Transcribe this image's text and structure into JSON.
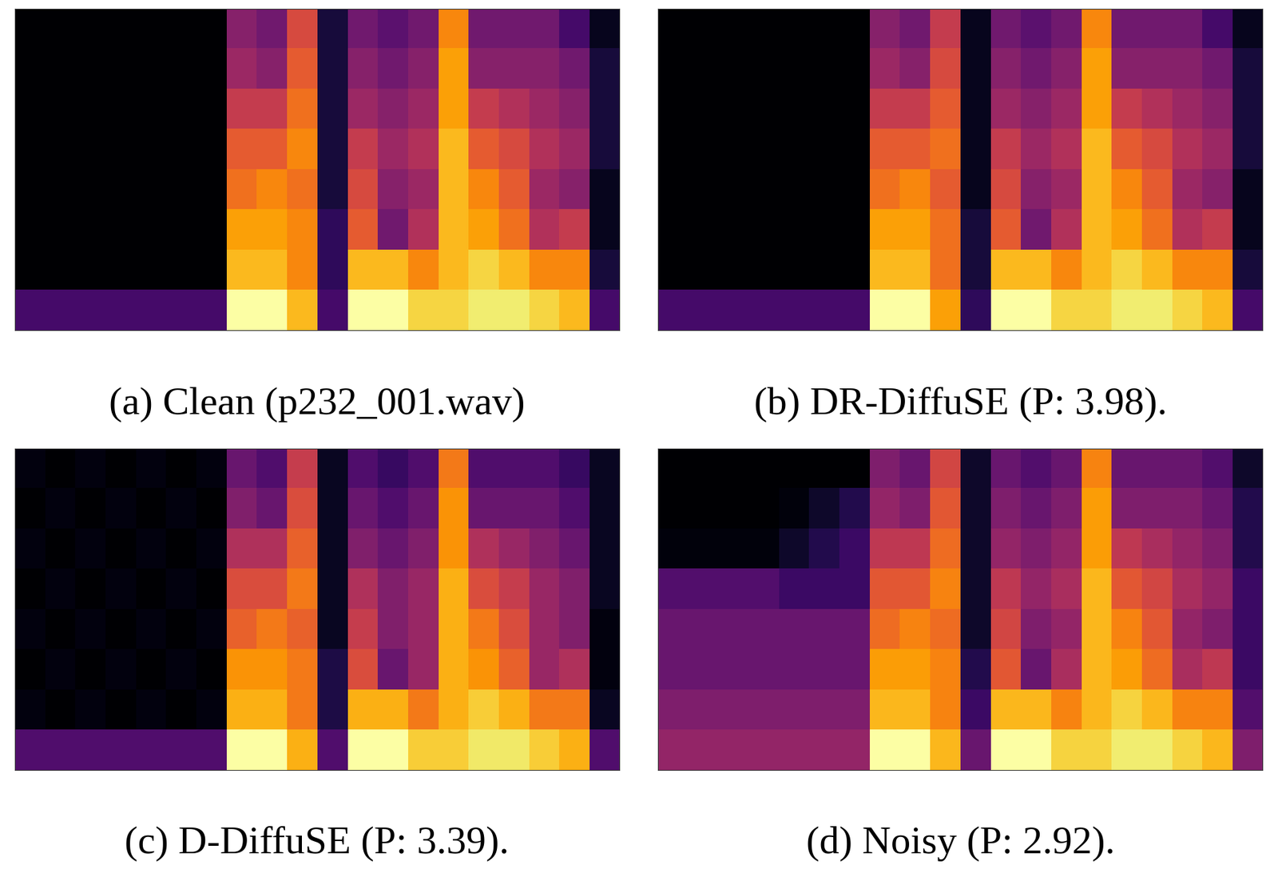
{
  "chart_data": [
    {
      "type": "heatmap",
      "title": "(a) Clean (p232_001.wav)",
      "color": "inferno",
      "tick_labels": false,
      "cells": [
        [
          0,
          0,
          0,
          0,
          0,
          0,
          0,
          0.35,
          0.3,
          0.55,
          0.1,
          0.3,
          0.25,
          0.3,
          0.7,
          0.3,
          0.3,
          0.3,
          0.2,
          0.05
        ],
        [
          0,
          0,
          0,
          0,
          0,
          0,
          0,
          0.4,
          0.35,
          0.6,
          0.1,
          0.35,
          0.3,
          0.35,
          0.75,
          0.35,
          0.35,
          0.35,
          0.3,
          0.1
        ],
        [
          0,
          0,
          0,
          0,
          0,
          0,
          0,
          0.5,
          0.5,
          0.65,
          0.1,
          0.4,
          0.35,
          0.4,
          0.75,
          0.5,
          0.45,
          0.4,
          0.35,
          0.1
        ],
        [
          0,
          0,
          0,
          0,
          0,
          0,
          0,
          0.6,
          0.6,
          0.7,
          0.1,
          0.5,
          0.4,
          0.45,
          0.8,
          0.6,
          0.55,
          0.45,
          0.4,
          0.1
        ],
        [
          0,
          0,
          0,
          0,
          0,
          0,
          0,
          0.65,
          0.7,
          0.65,
          0.1,
          0.55,
          0.35,
          0.4,
          0.8,
          0.7,
          0.6,
          0.4,
          0.35,
          0.05
        ],
        [
          0,
          0,
          0,
          0,
          0,
          0,
          0,
          0.75,
          0.75,
          0.7,
          0.15,
          0.6,
          0.3,
          0.45,
          0.8,
          0.75,
          0.65,
          0.45,
          0.5,
          0.05
        ],
        [
          0,
          0,
          0,
          0,
          0,
          0,
          0,
          0.8,
          0.8,
          0.7,
          0.15,
          0.8,
          0.8,
          0.7,
          0.8,
          0.85,
          0.8,
          0.7,
          0.7,
          0.1
        ],
        [
          0.2,
          0.2,
          0.2,
          0.2,
          0.2,
          0.2,
          0.2,
          0.95,
          0.95,
          0.8,
          0.2,
          0.95,
          0.95,
          0.85,
          0.85,
          0.9,
          0.9,
          0.85,
          0.8,
          0.2
        ]
      ]
    },
    {
      "type": "heatmap",
      "title": "(b) DR-DiffuSE (P: 3.98).",
      "color": "inferno",
      "tick_labels": false,
      "cells": [
        [
          0,
          0,
          0,
          0,
          0,
          0,
          0,
          0.35,
          0.3,
          0.5,
          0.05,
          0.3,
          0.25,
          0.3,
          0.7,
          0.3,
          0.3,
          0.3,
          0.2,
          0.05
        ],
        [
          0,
          0,
          0,
          0,
          0,
          0,
          0,
          0.4,
          0.35,
          0.55,
          0.05,
          0.35,
          0.3,
          0.35,
          0.75,
          0.35,
          0.35,
          0.35,
          0.3,
          0.1
        ],
        [
          0,
          0,
          0,
          0,
          0,
          0,
          0,
          0.5,
          0.5,
          0.6,
          0.05,
          0.4,
          0.35,
          0.4,
          0.75,
          0.5,
          0.45,
          0.4,
          0.35,
          0.1
        ],
        [
          0,
          0,
          0,
          0,
          0,
          0,
          0,
          0.6,
          0.6,
          0.65,
          0.05,
          0.5,
          0.4,
          0.45,
          0.8,
          0.6,
          0.55,
          0.45,
          0.4,
          0.1
        ],
        [
          0,
          0,
          0,
          0,
          0,
          0,
          0,
          0.65,
          0.7,
          0.6,
          0.05,
          0.55,
          0.35,
          0.4,
          0.8,
          0.7,
          0.6,
          0.4,
          0.35,
          0.05
        ],
        [
          0,
          0,
          0,
          0,
          0,
          0,
          0,
          0.75,
          0.75,
          0.65,
          0.1,
          0.6,
          0.3,
          0.45,
          0.8,
          0.75,
          0.65,
          0.45,
          0.5,
          0.05
        ],
        [
          0,
          0,
          0,
          0,
          0,
          0,
          0,
          0.8,
          0.8,
          0.65,
          0.1,
          0.8,
          0.8,
          0.7,
          0.8,
          0.85,
          0.8,
          0.7,
          0.7,
          0.1
        ],
        [
          0.2,
          0.2,
          0.2,
          0.2,
          0.2,
          0.2,
          0.2,
          0.95,
          0.95,
          0.75,
          0.15,
          0.95,
          0.95,
          0.85,
          0.85,
          0.9,
          0.9,
          0.85,
          0.8,
          0.2
        ]
      ]
    },
    {
      "type": "heatmap",
      "title": "(c) D-DiffuSE (P: 3.39).",
      "color": "inferno",
      "tick_labels": false,
      "cells": [
        [
          0.12,
          0.1,
          0.12,
          0.1,
          0.12,
          0.1,
          0.12,
          0.35,
          0.3,
          0.55,
          0.15,
          0.3,
          0.25,
          0.3,
          0.7,
          0.3,
          0.3,
          0.3,
          0.25,
          0.15
        ],
        [
          0.1,
          0.12,
          0.1,
          0.12,
          0.1,
          0.12,
          0.1,
          0.4,
          0.35,
          0.6,
          0.15,
          0.35,
          0.3,
          0.35,
          0.75,
          0.35,
          0.35,
          0.35,
          0.3,
          0.15
        ],
        [
          0.12,
          0.1,
          0.12,
          0.1,
          0.12,
          0.1,
          0.12,
          0.5,
          0.5,
          0.65,
          0.15,
          0.4,
          0.35,
          0.4,
          0.75,
          0.5,
          0.45,
          0.4,
          0.35,
          0.15
        ],
        [
          0.1,
          0.12,
          0.1,
          0.12,
          0.1,
          0.12,
          0.1,
          0.6,
          0.6,
          0.7,
          0.15,
          0.5,
          0.4,
          0.45,
          0.8,
          0.6,
          0.55,
          0.45,
          0.4,
          0.15
        ],
        [
          0.12,
          0.1,
          0.12,
          0.1,
          0.12,
          0.1,
          0.12,
          0.65,
          0.7,
          0.65,
          0.15,
          0.55,
          0.4,
          0.45,
          0.8,
          0.7,
          0.6,
          0.45,
          0.4,
          0.12
        ],
        [
          0.1,
          0.12,
          0.1,
          0.12,
          0.1,
          0.12,
          0.1,
          0.75,
          0.75,
          0.7,
          0.2,
          0.6,
          0.35,
          0.45,
          0.8,
          0.75,
          0.65,
          0.45,
          0.5,
          0.12
        ],
        [
          0.12,
          0.1,
          0.12,
          0.1,
          0.12,
          0.1,
          0.12,
          0.8,
          0.8,
          0.7,
          0.2,
          0.8,
          0.8,
          0.7,
          0.8,
          0.85,
          0.8,
          0.7,
          0.7,
          0.15
        ],
        [
          0.3,
          0.3,
          0.3,
          0.3,
          0.3,
          0.3,
          0.3,
          0.95,
          0.95,
          0.8,
          0.3,
          0.95,
          0.95,
          0.85,
          0.85,
          0.9,
          0.9,
          0.85,
          0.8,
          0.3
        ]
      ]
    },
    {
      "type": "heatmap",
      "title": "(d) Noisy (P: 2.92).",
      "color": "inferno",
      "tick_labels": false,
      "cells": [
        [
          0.03,
          0.03,
          0.03,
          0.03,
          0.03,
          0.03,
          0.03,
          0.35,
          0.3,
          0.55,
          0.1,
          0.3,
          0.25,
          0.3,
          0.7,
          0.3,
          0.3,
          0.3,
          0.25,
          0.1
        ],
        [
          0.03,
          0.03,
          0.03,
          0.03,
          0.05,
          0.1,
          0.15,
          0.4,
          0.35,
          0.6,
          0.1,
          0.35,
          0.3,
          0.35,
          0.75,
          0.35,
          0.35,
          0.35,
          0.3,
          0.15
        ],
        [
          0.05,
          0.05,
          0.05,
          0.05,
          0.1,
          0.15,
          0.2,
          0.5,
          0.5,
          0.65,
          0.1,
          0.4,
          0.35,
          0.4,
          0.75,
          0.5,
          0.45,
          0.4,
          0.35,
          0.15
        ],
        [
          0.25,
          0.25,
          0.25,
          0.25,
          0.2,
          0.2,
          0.2,
          0.6,
          0.6,
          0.7,
          0.1,
          0.5,
          0.4,
          0.45,
          0.8,
          0.6,
          0.55,
          0.45,
          0.4,
          0.2
        ],
        [
          0.3,
          0.3,
          0.3,
          0.3,
          0.3,
          0.3,
          0.3,
          0.65,
          0.7,
          0.65,
          0.1,
          0.55,
          0.35,
          0.4,
          0.8,
          0.7,
          0.6,
          0.4,
          0.35,
          0.2
        ],
        [
          0.3,
          0.3,
          0.3,
          0.3,
          0.3,
          0.3,
          0.3,
          0.75,
          0.75,
          0.7,
          0.15,
          0.6,
          0.3,
          0.45,
          0.8,
          0.75,
          0.65,
          0.45,
          0.5,
          0.2
        ],
        [
          0.35,
          0.35,
          0.35,
          0.35,
          0.35,
          0.35,
          0.35,
          0.8,
          0.8,
          0.7,
          0.2,
          0.8,
          0.8,
          0.7,
          0.8,
          0.85,
          0.8,
          0.7,
          0.7,
          0.25
        ],
        [
          0.4,
          0.4,
          0.4,
          0.4,
          0.4,
          0.4,
          0.4,
          0.95,
          0.95,
          0.8,
          0.3,
          0.95,
          0.95,
          0.85,
          0.85,
          0.9,
          0.9,
          0.85,
          0.8,
          0.35
        ]
      ]
    }
  ]
}
